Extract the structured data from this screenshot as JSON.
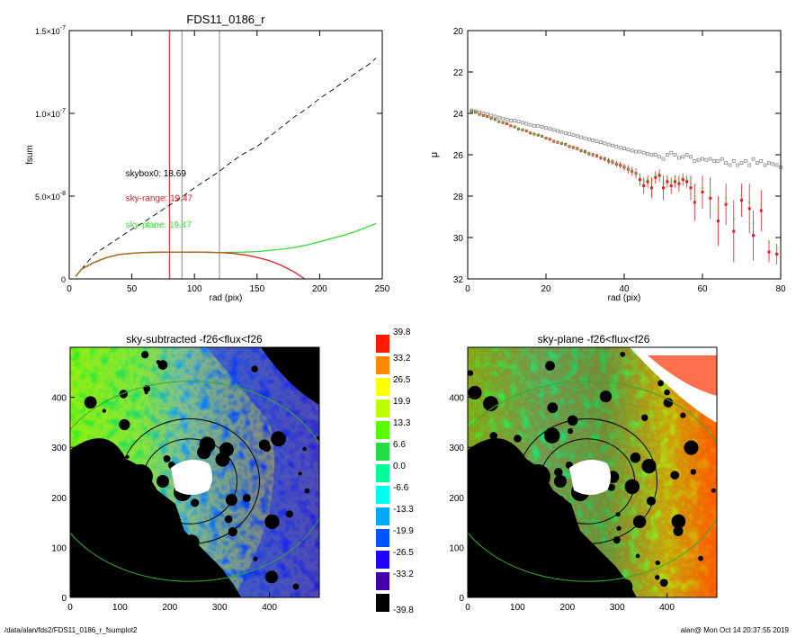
{
  "footer": {
    "path": "/data/alan/fds2/FDS11_0186_r_fsumplot2",
    "stamp": "alan@  Mon Oct 14 20:37:55 2019"
  },
  "chart_data": [
    {
      "type": "line",
      "title": "FDS11_0186_r",
      "xlabel": "rad (pix)",
      "ylabel": "fsum",
      "xlim": [
        0,
        250
      ],
      "ylim": [
        0,
        1.5e-07
      ],
      "xticks": [
        "0",
        "50",
        "100",
        "150",
        "200",
        "250"
      ],
      "yticks": [
        {
          "value": 0,
          "label": "0"
        },
        {
          "value": 5e-08,
          "label": "5.0×10",
          "exp": "-8"
        },
        {
          "value": 1e-07,
          "label": "1.0×10",
          "exp": "-7"
        },
        {
          "value": 1.5e-07,
          "label": "1.5×10",
          "exp": "-7"
        }
      ],
      "vlines": [
        {
          "x": 80,
          "color": "#e8191f"
        },
        {
          "x": 90,
          "color": "#888888"
        },
        {
          "x": 120,
          "color": "#888888"
        }
      ],
      "annotations": [
        {
          "text": "skybox0: 18.69",
          "color": "#000000",
          "x": 45,
          "y": 6.2e-08
        },
        {
          "text": "sky-range: 19.47",
          "color": "#e8191f",
          "x": 45,
          "y": 4.7e-08
        },
        {
          "text": "sky-plane: 19.47",
          "color": "#33dd33",
          "x": 45,
          "y": 3.1e-08
        }
      ],
      "series": [
        {
          "style": "dashed",
          "color": "#000000",
          "x": [
            5,
            10,
            20,
            30,
            40,
            50,
            60,
            70,
            80,
            90,
            100,
            110,
            120,
            130,
            140,
            150,
            160,
            170,
            180,
            190,
            200,
            210,
            220,
            230,
            240,
            245
          ],
          "y": [
            1.5e-09,
            6e-09,
            1.5e-08,
            2e-08,
            2.5e-08,
            3e-08,
            3.45e-08,
            3.95e-08,
            4.45e-08,
            4.95e-08,
            5.5e-08,
            6e-08,
            6.5e-08,
            7.1e-08,
            7.6e-08,
            8e-08,
            8.6e-08,
            9.2e-08,
            9.8e-08,
            1.03e-07,
            1.09e-07,
            1.14e-07,
            1.195e-07,
            1.25e-07,
            1.3e-07,
            1.335e-07
          ]
        },
        {
          "style": "solid",
          "color": "#33dd33",
          "x": [
            5,
            10,
            20,
            30,
            40,
            50,
            60,
            80,
            100,
            120,
            140,
            150,
            160,
            170,
            180,
            190,
            200,
            210,
            220,
            230,
            240,
            245
          ],
          "y": [
            1.5e-09,
            6e-09,
            1e-08,
            1.3e-08,
            1.48e-08,
            1.55e-08,
            1.6e-08,
            1.62e-08,
            1.62e-08,
            1.6e-08,
            1.62e-08,
            1.65e-08,
            1.72e-08,
            1.8e-08,
            1.9e-08,
            2.05e-08,
            2.25e-08,
            2.45e-08,
            2.65e-08,
            2.9e-08,
            3.2e-08,
            3.35e-08
          ]
        },
        {
          "style": "solid",
          "color": "#e8191f",
          "x": [
            5,
            10,
            20,
            30,
            40,
            50,
            60,
            80,
            100,
            120,
            130,
            140,
            150,
            160,
            170,
            180,
            188
          ],
          "y": [
            1.5e-09,
            6e-09,
            1e-08,
            1.3e-08,
            1.48e-08,
            1.55e-08,
            1.6e-08,
            1.62e-08,
            1.62e-08,
            1.6e-08,
            1.55e-08,
            1.45e-08,
            1.3e-08,
            1.1e-08,
            8e-09,
            4e-09,
            0.0
          ]
        },
        {
          "style": "solid",
          "color": "#a07020",
          "x": [
            5,
            10,
            20,
            30,
            40,
            50,
            60,
            80,
            100,
            120,
            125
          ],
          "y": [
            1.5e-09,
            6e-09,
            1e-08,
            1.3e-08,
            1.48e-08,
            1.55e-08,
            1.6e-08,
            1.62e-08,
            1.62e-08,
            1.6e-08,
            1.58e-08
          ]
        }
      ]
    },
    {
      "type": "scatter",
      "xlabel": "rad (pix)",
      "ylabel": "μ",
      "xlim": [
        0,
        80
      ],
      "ylim": [
        32,
        20
      ],
      "xticks": [
        "0",
        "20",
        "40",
        "60",
        "80"
      ],
      "yticks": [
        "20",
        "22",
        "24",
        "26",
        "28",
        "30",
        "32"
      ],
      "series": [
        {
          "name": "skybox0",
          "color": "#888888",
          "x": [
            1,
            2,
            3,
            4,
            5,
            6,
            7,
            8,
            9,
            10,
            11,
            12,
            13,
            14,
            15,
            16,
            17,
            18,
            19,
            20,
            21,
            22,
            23,
            24,
            25,
            26,
            27,
            28,
            29,
            30,
            31,
            32,
            33,
            34,
            35,
            36,
            37,
            38,
            39,
            40,
            41,
            42,
            43,
            44,
            45,
            46,
            47,
            48,
            49,
            50,
            51,
            52,
            53,
            54,
            55,
            56,
            57,
            58,
            59,
            60,
            61,
            62,
            63,
            64,
            65,
            66,
            67,
            68,
            69,
            70,
            71,
            72,
            73,
            74,
            75,
            76,
            77,
            78,
            79,
            80
          ],
          "y": [
            23.85,
            23.9,
            23.95,
            24.0,
            24.05,
            24.1,
            24.15,
            24.2,
            24.25,
            24.3,
            24.35,
            24.35,
            24.4,
            24.45,
            24.5,
            24.55,
            24.6,
            24.6,
            24.65,
            24.7,
            24.75,
            24.8,
            24.85,
            24.9,
            24.95,
            25.0,
            25.05,
            25.1,
            25.15,
            25.2,
            25.25,
            25.3,
            25.35,
            25.4,
            25.45,
            25.5,
            25.55,
            25.6,
            25.65,
            25.7,
            25.75,
            25.8,
            25.85,
            25.85,
            25.9,
            25.95,
            26.0,
            26.0,
            26.1,
            26.2,
            26.0,
            25.9,
            26.0,
            26.15,
            26.1,
            26.0,
            26.1,
            26.3,
            26.25,
            26.2,
            26.25,
            26.2,
            26.3,
            26.3,
            26.2,
            26.4,
            26.5,
            26.3,
            26.5,
            26.4,
            26.3,
            26.5,
            26.2,
            26.4,
            26.3,
            26.5,
            26.4,
            26.45,
            26.5,
            26.6
          ]
        },
        {
          "name": "sky-range",
          "color": "#e8191f",
          "x": [
            1,
            2,
            3,
            4,
            5,
            6,
            7,
            8,
            9,
            10,
            11,
            12,
            13,
            14,
            15,
            16,
            17,
            18,
            19,
            20,
            21,
            22,
            23,
            24,
            25,
            26,
            27,
            28,
            29,
            30,
            31,
            32,
            33,
            34,
            35,
            36,
            37,
            38,
            39,
            40,
            41,
            42,
            43,
            44,
            45,
            46,
            47,
            48,
            49,
            50,
            51,
            52,
            53,
            54,
            55,
            56,
            57,
            58,
            60,
            62,
            64,
            66,
            68,
            70,
            72,
            73,
            75,
            77,
            79
          ],
          "y": [
            23.9,
            23.95,
            24.05,
            24.1,
            24.15,
            24.25,
            24.3,
            24.4,
            24.45,
            24.5,
            24.6,
            24.65,
            24.75,
            24.8,
            24.85,
            24.95,
            25.0,
            25.05,
            25.1,
            25.2,
            25.25,
            25.35,
            25.4,
            25.45,
            25.5,
            25.6,
            25.65,
            25.7,
            25.8,
            25.85,
            25.95,
            26.0,
            26.05,
            26.15,
            26.2,
            26.3,
            26.35,
            26.45,
            26.5,
            26.6,
            26.7,
            26.8,
            26.9,
            27.2,
            27.5,
            27.3,
            27.6,
            27.1,
            27.0,
            27.6,
            27.3,
            27.5,
            27.3,
            27.4,
            27.2,
            27.3,
            27.6,
            28.3,
            27.8,
            28.1,
            29.2,
            28.4,
            29.7,
            28.2,
            28.6,
            29.9,
            28.7,
            30.7,
            30.8
          ],
          "err": [
            0.05,
            0.05,
            0.05,
            0.05,
            0.05,
            0.05,
            0.05,
            0.05,
            0.05,
            0.05,
            0.05,
            0.05,
            0.05,
            0.05,
            0.05,
            0.05,
            0.06,
            0.06,
            0.06,
            0.06,
            0.07,
            0.07,
            0.07,
            0.07,
            0.08,
            0.08,
            0.08,
            0.09,
            0.09,
            0.1,
            0.1,
            0.1,
            0.1,
            0.12,
            0.12,
            0.13,
            0.14,
            0.15,
            0.16,
            0.17,
            0.2,
            0.2,
            0.25,
            0.3,
            0.4,
            0.3,
            0.5,
            0.3,
            0.3,
            0.6,
            0.3,
            0.4,
            0.3,
            0.4,
            0.3,
            0.3,
            0.6,
            0.9,
            0.8,
            1.0,
            1.2,
            1.0,
            1.5,
            0.8,
            1.2,
            1.2,
            1.0,
            0.5,
            0.5
          ]
        },
        {
          "name": "sky-plane",
          "color": "#33dd33",
          "x": [
            1,
            2,
            3,
            4,
            5,
            6,
            7,
            8,
            9,
            10,
            11,
            12,
            13,
            14,
            15,
            16,
            17,
            18,
            19,
            20,
            21,
            22,
            23,
            24,
            25,
            26,
            27,
            28,
            29,
            30,
            31,
            32,
            33,
            34,
            35,
            36,
            37,
            38,
            39,
            40,
            41,
            42,
            43,
            44,
            45,
            46,
            47,
            48,
            49,
            50,
            51,
            52,
            53,
            54,
            55,
            56,
            57,
            58,
            60,
            62,
            64,
            66,
            68,
            70,
            72,
            73,
            75,
            77,
            79
          ],
          "y": [
            23.9,
            23.95,
            24.05,
            24.1,
            24.15,
            24.25,
            24.3,
            24.4,
            24.45,
            24.5,
            24.6,
            24.65,
            24.75,
            24.8,
            24.85,
            24.95,
            25.0,
            25.05,
            25.1,
            25.2,
            25.25,
            25.35,
            25.4,
            25.45,
            25.5,
            25.6,
            25.65,
            25.7,
            25.8,
            25.85,
            25.95,
            26.0,
            26.05,
            26.15,
            26.2,
            26.3,
            26.35,
            26.45,
            26.5,
            26.6,
            26.7,
            26.8,
            26.9,
            27.1,
            27.3,
            27.2,
            27.4,
            27.0,
            26.9,
            27.4,
            27.2,
            27.3,
            27.2,
            27.3,
            27.1,
            27.2,
            27.4,
            28.0,
            27.6,
            27.8,
            28.6,
            28.1,
            29.1,
            28.0,
            28.3,
            29.3,
            28.4,
            30.2,
            30.5
          ]
        }
      ]
    },
    {
      "type": "heatmap",
      "title": "sky-subtracted -f26<flux<f26",
      "xlim": [
        0,
        500
      ],
      "ylim": [
        0,
        500
      ],
      "xticks": [
        "0",
        "100",
        "200",
        "300",
        "400"
      ],
      "yticks": [
        "0",
        "100",
        "200",
        "300",
        "400"
      ],
      "center": [
        240,
        232
      ],
      "ellipses": [
        {
          "rx": 95,
          "ry": 85,
          "color": "#000000"
        },
        {
          "rx": 140,
          "ry": 125,
          "color": "#000000"
        },
        {
          "rx": 280,
          "ry": 200,
          "color": "#33aa33"
        }
      ]
    },
    {
      "type": "heatmap",
      "title": "sky-plane -f26<flux<f26",
      "xlim": [
        0,
        500
      ],
      "ylim": [
        0,
        500
      ],
      "xticks": [
        "0",
        "100",
        "200",
        "300",
        "400"
      ],
      "yticks": [
        "0",
        "100",
        "200",
        "300",
        "400"
      ],
      "center": [
        240,
        232
      ],
      "ellipses": [
        {
          "rx": 95,
          "ry": 85,
          "color": "#000000"
        },
        {
          "rx": 140,
          "ry": 125,
          "color": "#000000"
        },
        {
          "rx": 280,
          "ry": 200,
          "color": "#33aa33"
        }
      ]
    }
  ],
  "colorbar": {
    "labels": [
      "39.8",
      "33.2",
      "26.5",
      "19.9",
      "13.3",
      "6.6",
      "0.0",
      "-6.6",
      "-13.3",
      "-19.9",
      "-26.5",
      "-33.2",
      "-39.8"
    ],
    "colors": [
      "#ff1a00",
      "#ff8800",
      "#ffff00",
      "#bbff00",
      "#55ff00",
      "#22dd44",
      "#00ff99",
      "#00ffee",
      "#00aaff",
      "#0055ff",
      "#2200ff",
      "#4400aa",
      "#000000"
    ]
  }
}
